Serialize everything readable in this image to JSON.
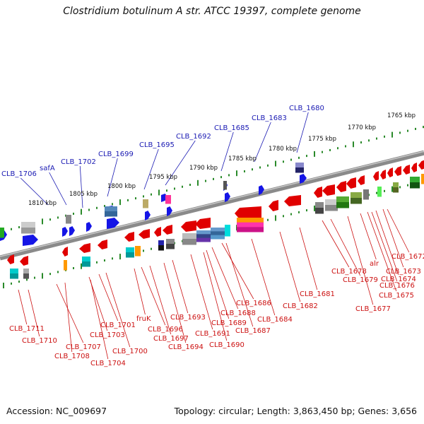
{
  "title": "Clostridium botulinum A str. ATCC 19397, complete genome",
  "accession": "Accession: NC_009697",
  "topology": "Topology: circular; Length: 3,863,450 bp; Genes: 3,656",
  "colors": {
    "forward_label": "#1a1ab3",
    "reverse_label": "#cc1111",
    "backbone": "#808080",
    "tick": "#2a8a2a",
    "gene_red": "#e00000",
    "gene_blue": "#1515e6",
    "gene_gray": "#aaaaaa"
  },
  "kbp_ticks": [
    "1810 kbp",
    "1805 kbp",
    "1800 kbp",
    "1795 kbp",
    "1790 kbp",
    "1785 kbp",
    "1780 kbp",
    "1775 kbp",
    "1770 kbp",
    "1765 kbp"
  ],
  "forward_labels": [
    "CLB_1706",
    "safA",
    "CLB_1702",
    "CLB_1699",
    "CLB_1695",
    "CLB_1692",
    "CLB_1685",
    "CLB_1683",
    "CLB_1680"
  ],
  "reverse_labels": [
    "CLB_1711",
    "CLB_1710",
    "CLB_1707",
    "CLB_1708",
    "CLB_1703",
    "CLB_1704",
    "CLB_1701",
    "CLB_1700",
    "fruK",
    "CLB_1696",
    "CLB_1697",
    "CLB_1694",
    "CLB_1693",
    "CLB_1691",
    "CLB_1690",
    "CLB_1689",
    "CLB_1688",
    "CLB_1686",
    "CLB_1687",
    "CLB_1684",
    "CLB_1682",
    "CLB_1681",
    "CLB_1678",
    "CLB_1679",
    "alr",
    "CLB_1677",
    "CLB_1676",
    "CLB_1672",
    "CLB_1673",
    "CLB_1674",
    "CLB_1675"
  ]
}
